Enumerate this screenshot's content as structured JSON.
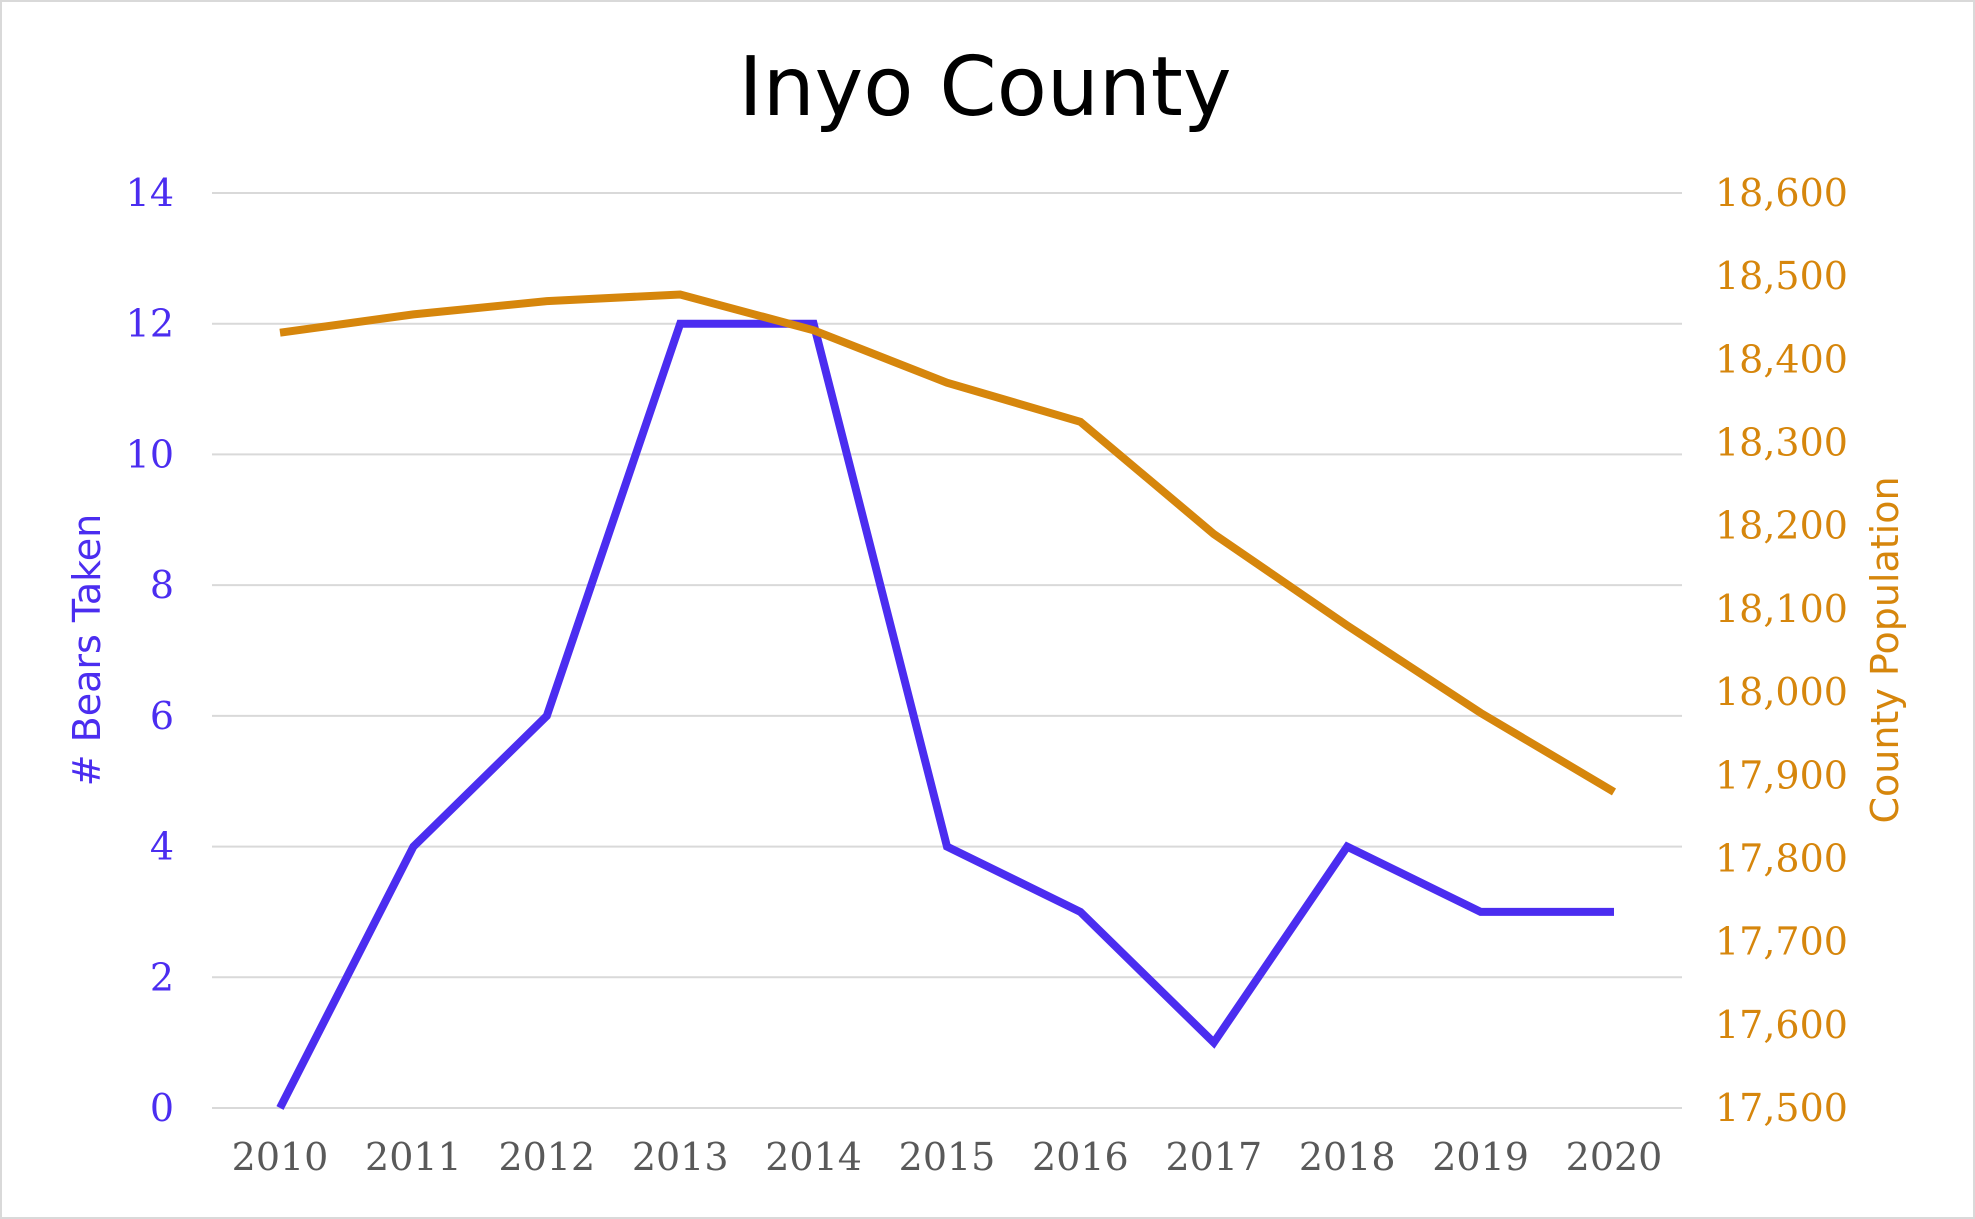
{
  "chart_data": {
    "type": "line",
    "title": "Inyo County",
    "xlabel": "",
    "x": [
      "2010",
      "2011",
      "2012",
      "2013",
      "2014",
      "2015",
      "2016",
      "2017",
      "2018",
      "2019",
      "2020"
    ],
    "y_left": {
      "label": "# Bears Taken",
      "lim": [
        0,
        14
      ],
      "ticks": [
        "0",
        "2",
        "4",
        "6",
        "8",
        "10",
        "12",
        "14"
      ],
      "color": "#4b2df0"
    },
    "y_right": {
      "label": "County Population",
      "lim": [
        17500,
        18600
      ],
      "ticks": [
        "17,500",
        "17,600",
        "17,700",
        "17,800",
        "17,900",
        "18,000",
        "18,100",
        "18,200",
        "18,300",
        "18,400",
        "18,500",
        "18,600"
      ],
      "color": "#d6860c"
    },
    "series": [
      {
        "axis": "left",
        "color": "#4b2df0",
        "values": [
          0,
          4,
          6,
          12,
          12,
          4,
          3,
          1,
          4,
          3,
          3
        ]
      },
      {
        "axis": "right",
        "color": "#d6860c",
        "values": [
          18432,
          18454,
          18470,
          18478,
          18435,
          18372,
          18325,
          18190,
          18080,
          17975,
          17880
        ]
      }
    ],
    "grid": true,
    "legend": "none"
  }
}
